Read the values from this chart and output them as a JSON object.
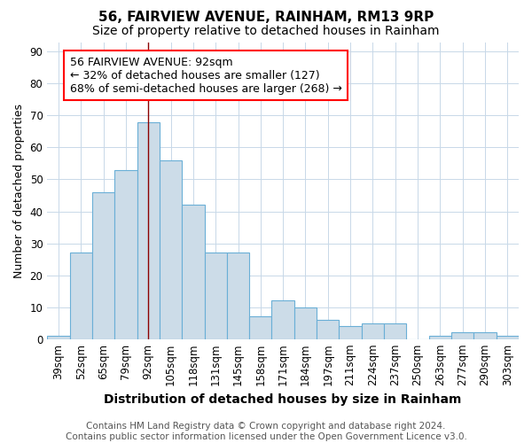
{
  "title": "56, FAIRVIEW AVENUE, RAINHAM, RM13 9RP",
  "subtitle": "Size of property relative to detached houses in Rainham",
  "xlabel": "Distribution of detached houses by size in Rainham",
  "ylabel": "Number of detached properties",
  "footnote": "Contains HM Land Registry data © Crown copyright and database right 2024.\nContains public sector information licensed under the Open Government Licence v3.0.",
  "bin_labels": [
    "39sqm",
    "52sqm",
    "65sqm",
    "79sqm",
    "92sqm",
    "105sqm",
    "118sqm",
    "131sqm",
    "145sqm",
    "158sqm",
    "171sqm",
    "184sqm",
    "197sqm",
    "211sqm",
    "224sqm",
    "237sqm",
    "250sqm",
    "263sqm",
    "277sqm",
    "290sqm",
    "303sqm"
  ],
  "bar_heights": [
    1,
    27,
    46,
    53,
    68,
    56,
    42,
    27,
    27,
    7,
    12,
    10,
    6,
    4,
    5,
    5,
    0,
    1,
    2,
    2,
    1
  ],
  "bar_color": "#ccdce8",
  "bar_edge_color": "#6aafd6",
  "property_line_x": 4,
  "annotation_text": "56 FAIRVIEW AVENUE: 92sqm\n← 32% of detached houses are smaller (127)\n68% of semi-detached houses are larger (268) →",
  "annotation_box_color": "white",
  "annotation_box_edge": "red",
  "ylim": [
    0,
    93
  ],
  "yticks": [
    0,
    10,
    20,
    30,
    40,
    50,
    60,
    70,
    80,
    90
  ],
  "background_color": "white",
  "plot_background": "white",
  "grid_color": "#c8d8e8",
  "title_fontsize": 11,
  "subtitle_fontsize": 10,
  "xlabel_fontsize": 10,
  "ylabel_fontsize": 9,
  "tick_fontsize": 8.5,
  "footnote_fontsize": 7.5,
  "annotation_fontsize": 9
}
